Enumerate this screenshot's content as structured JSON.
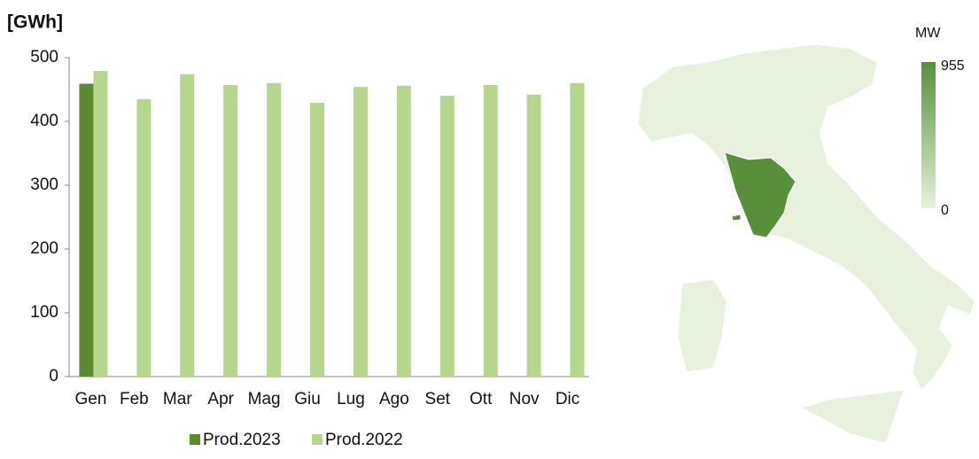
{
  "chart_data": {
    "type": "bar",
    "y_label": "[GWh]",
    "categories": [
      "Gen",
      "Feb",
      "Mar",
      "Apr",
      "Mag",
      "Giu",
      "Lug",
      "Ago",
      "Set",
      "Ott",
      "Nov",
      "Dic"
    ],
    "series": [
      {
        "name": "Prod.2023",
        "color": "#5b8a30",
        "values": [
          459,
          null,
          null,
          null,
          null,
          null,
          null,
          null,
          null,
          null,
          null,
          null
        ]
      },
      {
        "name": "Prod.2022",
        "color": "#b5d68c",
        "values": [
          479,
          435,
          474,
          457,
          460,
          429,
          454,
          456,
          440,
          457,
          442,
          460
        ]
      }
    ],
    "ylim": [
      0,
      500
    ],
    "yticks": [
      0,
      100,
      200,
      300,
      400,
      500
    ],
    "grid": false,
    "legend": "bottom"
  },
  "map": {
    "legend_title": "MW",
    "scale_max": 955,
    "scale_min": 0,
    "colors": [
      "#e8f1dd",
      "#578f3b"
    ]
  }
}
